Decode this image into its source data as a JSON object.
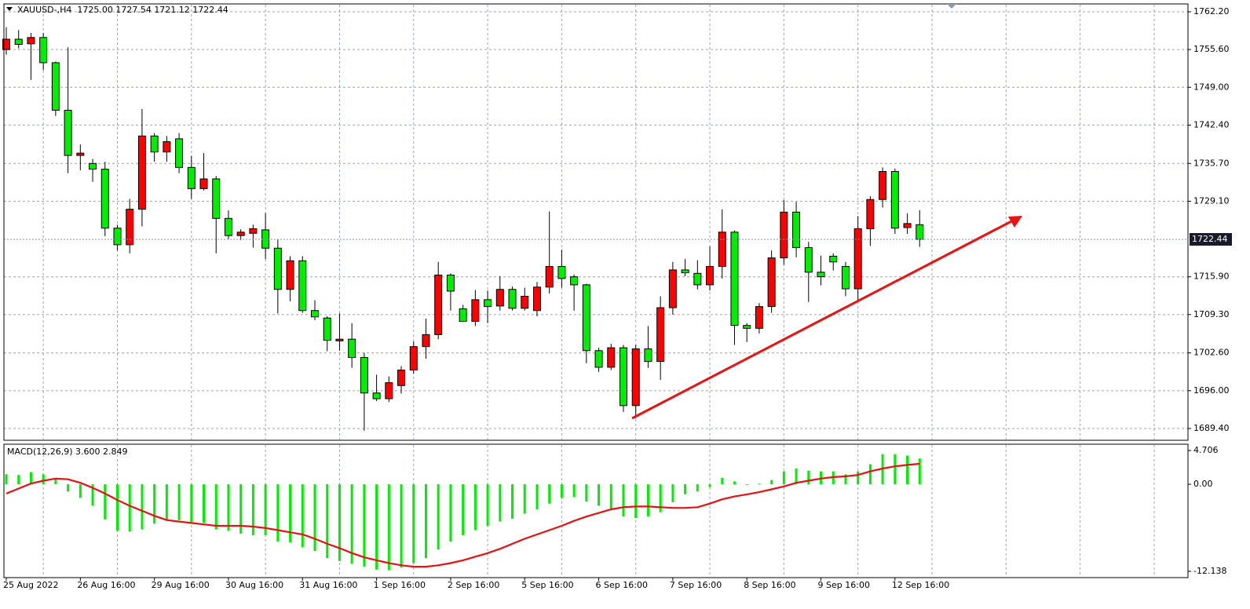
{
  "chart_data": [
    {
      "type": "candlestick",
      "title": "XAUUSD-,H4  1725.00 1727.54 1721.12 1722.44",
      "categories": [
        "25 Aug 2022",
        null,
        null,
        null,
        null,
        null,
        "26 Aug 16:00",
        null,
        null,
        null,
        null,
        null,
        "29 Aug 16:00",
        null,
        null,
        null,
        null,
        null,
        "30 Aug 16:00",
        null,
        null,
        null,
        null,
        null,
        "31 Aug 16:00",
        null,
        null,
        null,
        null,
        null,
        "1 Sep 16:00",
        null,
        null,
        null,
        null,
        null,
        "2 Sep 16:00",
        null,
        null,
        null,
        null,
        null,
        "5 Sep 16:00",
        null,
        null,
        null,
        null,
        null,
        "6 Sep 16:00",
        null,
        null,
        null,
        null,
        null,
        "7 Sep 16:00",
        null,
        null,
        null,
        null,
        null,
        "8 Sep 16:00",
        null,
        null,
        null,
        null,
        null,
        "9 Sep 16:00",
        null,
        null,
        null,
        null,
        null,
        "12 Sep 16:00",
        null,
        null
      ],
      "open": [
        1755.6,
        1757.4,
        1756.6,
        1757.7,
        1753.3,
        1745.0,
        1737.1,
        1735.7,
        1734.7,
        1724.4,
        1721.5,
        1727.7,
        1740.5,
        1737.7,
        1740.0,
        1735.0,
        1731.3,
        1733.0,
        1726.1,
        1723.1,
        1723.5,
        1724.1,
        1720.9,
        1713.7,
        1718.7,
        1710.0,
        1708.7,
        1704.7,
        1705.0,
        1701.8,
        1695.6,
        1694.6,
        1696.9,
        1699.6,
        1703.7,
        1705.8,
        1716.2,
        1710.3,
        1708.1,
        1711.9,
        1710.8,
        1713.7,
        1710.4,
        1710.0,
        1714.1,
        1717.7,
        1715.9,
        1714.5,
        1703.0,
        1700.1,
        1703.5,
        1693.4,
        1703.3,
        1701.1,
        1710.5,
        1717.1,
        1716.5,
        1714.5,
        1717.7,
        1723.7,
        1707.4,
        1706.9,
        1710.7,
        1719.2,
        1727.2,
        1721.0,
        1716.7,
        1719.5,
        1717.7,
        1713.8,
        1724.3,
        1729.4,
        1734.3,
        1724.5,
        1725.0
      ],
      "high": [
        1759.5,
        1759.0,
        1758.5,
        1758.5,
        1753.5,
        1756.0,
        1739.0,
        1736.5,
        1736.0,
        1725.0,
        1729.5,
        1745.2,
        1741.0,
        1740.5,
        1741.0,
        1737.0,
        1737.5,
        1733.5,
        1727.5,
        1724.2,
        1725.0,
        1727.0,
        1722.5,
        1719.5,
        1719.5,
        1711.8,
        1709.0,
        1709.5,
        1707.8,
        1702.6,
        1698.8,
        1698.5,
        1700.3,
        1704.6,
        1708.6,
        1718.5,
        1716.5,
        1711.0,
        1713.6,
        1713.5,
        1716.0,
        1714.2,
        1714.0,
        1715.0,
        1727.3,
        1720.6,
        1716.3,
        1714.7,
        1703.5,
        1704.2,
        1704.0,
        1704.0,
        1707.3,
        1712.5,
        1718.5,
        1719.0,
        1718.8,
        1721.2,
        1727.7,
        1724.0,
        1707.8,
        1711.3,
        1720.5,
        1729.3,
        1729.0,
        1722.0,
        1719.6,
        1720.0,
        1718.5,
        1726.5,
        1730.0,
        1735.0,
        1734.8,
        1727.0,
        1727.54
      ],
      "low": [
        1754.7,
        1755.8,
        1750.3,
        1752.0,
        1744.0,
        1734.0,
        1734.5,
        1732.5,
        1723.0,
        1720.5,
        1720.0,
        1724.7,
        1736.0,
        1736.0,
        1734.0,
        1729.5,
        1731.0,
        1720.0,
        1722.5,
        1722.3,
        1721.0,
        1719.0,
        1709.5,
        1711.6,
        1709.6,
        1708.3,
        1702.9,
        1703.0,
        1700.0,
        1689.0,
        1694.2,
        1694.0,
        1695.5,
        1699.0,
        1701.6,
        1705.0,
        1710.0,
        1708.0,
        1707.3,
        1707.8,
        1710.0,
        1710.0,
        1710.0,
        1709.0,
        1713.0,
        1714.0,
        1710.0,
        1700.8,
        1699.3,
        1699.6,
        1692.3,
        1691.2,
        1700.0,
        1697.9,
        1709.3,
        1716.0,
        1713.7,
        1713.5,
        1715.6,
        1704.0,
        1704.5,
        1706.0,
        1709.6,
        1718.0,
        1719.3,
        1711.5,
        1714.4,
        1717.0,
        1712.5,
        1711.6,
        1721.3,
        1728.0,
        1723.4,
        1723.4,
        1721.12
      ],
      "close": [
        1757.4,
        1756.5,
        1757.7,
        1753.3,
        1745.0,
        1737.1,
        1737.5,
        1734.7,
        1724.4,
        1721.5,
        1727.7,
        1740.5,
        1737.7,
        1739.5,
        1735.0,
        1731.3,
        1733.0,
        1726.1,
        1723.1,
        1723.7,
        1724.3,
        1720.9,
        1713.7,
        1718.7,
        1710.0,
        1708.9,
        1704.8,
        1705.0,
        1701.8,
        1695.6,
        1694.6,
        1697.4,
        1699.6,
        1703.7,
        1705.8,
        1716.2,
        1713.4,
        1708.1,
        1711.9,
        1710.7,
        1713.7,
        1710.4,
        1712.5,
        1714.1,
        1717.7,
        1715.6,
        1714.5,
        1703.0,
        1700.1,
        1703.5,
        1693.4,
        1703.3,
        1701.1,
        1710.5,
        1717.1,
        1716.6,
        1714.5,
        1717.7,
        1723.7,
        1707.4,
        1706.9,
        1710.7,
        1719.2,
        1727.2,
        1721.0,
        1716.7,
        1715.9,
        1718.5,
        1713.8,
        1724.3,
        1729.4,
        1734.3,
        1724.4,
        1725.2,
        1722.44
      ],
      "up_color": "#ff0000",
      "down_color": "#00ee00",
      "ylim": [
        1687.34,
        1763.57
      ],
      "yticks": [
        {
          "value": 1689.4,
          "label": "1689.40"
        },
        {
          "value": 1696.0,
          "label": "1696.00"
        },
        {
          "value": 1702.6,
          "label": "1702.60"
        },
        {
          "value": 1709.3,
          "label": "1709.30"
        },
        {
          "value": 1715.9,
          "label": "1715.90"
        },
        {
          "value": 1729.1,
          "label": "1729.10"
        },
        {
          "value": 1735.7,
          "label": "1735.70"
        },
        {
          "value": 1742.4,
          "label": "1742.40"
        },
        {
          "value": 1749.0,
          "label": "1749.00"
        },
        {
          "value": 1755.6,
          "label": "1755.60"
        },
        {
          "value": 1762.2,
          "label": "1762.20"
        }
      ],
      "current_price": 1722.44,
      "grid": true
    },
    {
      "type": "macd",
      "title": "MACD(12,26,9) 3.600 2.849",
      "series": [
        {
          "color": "#00ee00",
          "values": [
            1.4,
            1.3,
            1.7,
            1.4,
            0.7,
            -1.0,
            -1.9,
            -3.0,
            -4.9,
            -6.5,
            -6.6,
            -6.3,
            -5.5,
            -5.0,
            -5.0,
            -5.4,
            -5.4,
            -6.3,
            -6.5,
            -6.9,
            -7.1,
            -7.1,
            -8.0,
            -8.1,
            -8.8,
            -9.3,
            -10.3,
            -10.7,
            -11.1,
            -11.5,
            -11.9,
            -12.0,
            -11.6,
            -11.0,
            -10.3,
            -9.1,
            -8.0,
            -7.1,
            -6.4,
            -5.8,
            -5.2,
            -4.8,
            -4.1,
            -3.5,
            -2.7,
            -1.9,
            -1.8,
            -2.4,
            -3.0,
            -3.5,
            -4.5,
            -4.7,
            -4.5,
            -3.9,
            -2.5,
            -1.4,
            -1.0,
            -0.4,
            0.9,
            0.4,
            -0.1,
            0.1,
            0.6,
            1.8,
            2.2,
            1.9,
            1.8,
            1.8,
            1.4,
            1.8,
            2.8,
            4.2,
            4.2,
            4.0,
            3.6
          ]
        },
        {
          "color": "#e81010",
          "values": [
            -1.3,
            -0.6,
            0.1,
            0.5,
            0.8,
            0.7,
            0.2,
            -0.5,
            -1.3,
            -2.2,
            -3.0,
            -3.7,
            -4.4,
            -5.0,
            -5.2,
            -5.4,
            -5.6,
            -5.8,
            -5.8,
            -5.8,
            -5.9,
            -6.1,
            -6.4,
            -6.7,
            -7.0,
            -7.6,
            -8.3,
            -8.9,
            -9.6,
            -10.2,
            -10.6,
            -11.0,
            -11.3,
            -11.5,
            -11.5,
            -11.3,
            -11.0,
            -10.6,
            -10.1,
            -9.6,
            -9.0,
            -8.3,
            -7.6,
            -7.0,
            -6.4,
            -5.8,
            -5.1,
            -4.5,
            -4.0,
            -3.5,
            -3.2,
            -3.1,
            -3.1,
            -3.2,
            -3.3,
            -3.3,
            -3.2,
            -2.7,
            -2.1,
            -1.7,
            -1.4,
            -1.1,
            -0.7,
            -0.3,
            0.2,
            0.5,
            0.8,
            1.0,
            1.1,
            1.3,
            1.8,
            2.2,
            2.5,
            2.7,
            2.849
          ]
        }
      ],
      "ylim": [
        -13.02,
        5.59
      ],
      "yticks": [
        -12.138,
        {
          "value": 0,
          "label": "0.00"
        },
        4.706
      ]
    }
  ]
}
